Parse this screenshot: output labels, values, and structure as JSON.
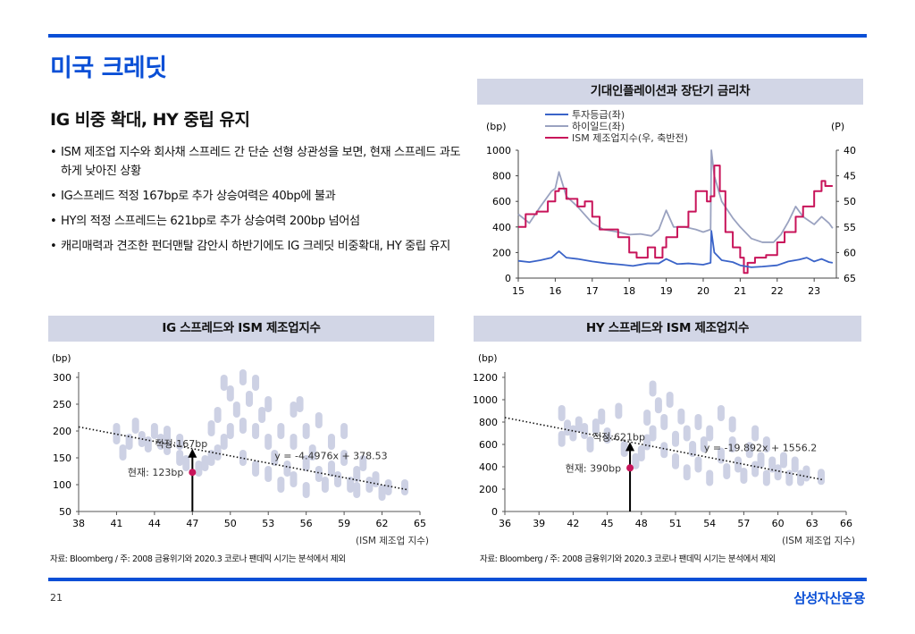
{
  "page": {
    "title": "미국 크레딧",
    "subtitle": "IG 비중 확대, HY 중립 유지",
    "bullets": [
      "ISM 제조업 지수와 회사채 스프레드 간 단순 선형 상관성을 보면, 현재 스프레드 과도하게 낮아진 상황",
      "IG스프레드 적정 167bp로 추가 상승여력은 40bp에 불과",
      "HY의 적정 스프레드는 621bp로 추가 상승여력 200bp 넘어섬",
      "캐리매력과 견조한 펀더맨탈 감안시 하반기에도 IG 크레딧 비중확대, HY 중립 유지"
    ],
    "page_number": "21",
    "brand": "삼성자산운용",
    "accent_color": "#0a4fd6"
  },
  "chart_data": [
    {
      "id": "spread-vs-ism-timeseries",
      "type": "line",
      "title": "기대인플레이션과 장단기 금리차",
      "ylabel_left": "(bp)",
      "ylabel_right": "(P)",
      "ylim_left": [
        0,
        1000
      ],
      "yticks_left": [
        "1000",
        "800",
        "600",
        "400",
        "200",
        "0"
      ],
      "ylim_right": [
        40,
        65
      ],
      "right_axis_inverted": true,
      "yticks_right": [
        "40",
        "45",
        "50",
        "55",
        "60",
        "65"
      ],
      "xlim": [
        15,
        23.6
      ],
      "xticks": [
        "15",
        "16",
        "17",
        "18",
        "19",
        "20",
        "21",
        "22",
        "23"
      ],
      "legend_position": "top-left",
      "series": [
        {
          "name": "투자등급(좌)",
          "axis": "left",
          "color": "#3a63c8",
          "x": [
            15,
            15.3,
            15.6,
            15.9,
            16.1,
            16.3,
            16.6,
            17,
            17.4,
            17.8,
            18.1,
            18.5,
            18.8,
            19,
            19.3,
            19.6,
            20,
            20.2,
            20.22,
            20.3,
            20.5,
            20.8,
            21,
            21.3,
            21.6,
            22,
            22.3,
            22.6,
            22.8,
            23,
            23.2,
            23.4,
            23.5
          ],
          "y": [
            135,
            125,
            140,
            160,
            210,
            160,
            150,
            130,
            115,
            105,
            95,
            115,
            115,
            150,
            110,
            115,
            105,
            120,
            370,
            200,
            140,
            125,
            100,
            85,
            90,
            100,
            130,
            145,
            160,
            130,
            150,
            125,
            120
          ]
        },
        {
          "name": "하이일드(좌)",
          "axis": "left",
          "color": "#9aa2c0",
          "x": [
            15,
            15.3,
            15.6,
            15.9,
            16,
            16.1,
            16.3,
            16.6,
            17,
            17.3,
            17.7,
            18,
            18.3,
            18.6,
            18.8,
            19,
            19.2,
            19.5,
            19.8,
            20,
            20.2,
            20.22,
            20.3,
            20.5,
            20.8,
            21,
            21.3,
            21.6,
            21.9,
            22.1,
            22.3,
            22.5,
            22.7,
            23,
            23.2,
            23.4,
            23.5
          ],
          "y": [
            500,
            430,
            560,
            680,
            700,
            830,
            640,
            560,
            430,
            380,
            360,
            340,
            345,
            330,
            380,
            530,
            400,
            400,
            380,
            360,
            380,
            1000,
            800,
            600,
            470,
            400,
            310,
            280,
            280,
            340,
            440,
            560,
            480,
            420,
            480,
            430,
            390
          ]
        },
        {
          "name": "ISM 제조업지수(우, 축반전)",
          "axis": "right",
          "color": "#c8145a",
          "x": [
            15,
            15.2,
            15.5,
            15.8,
            16,
            16.1,
            16.3,
            16.6,
            16.8,
            17,
            17.2,
            17.4,
            17.7,
            18,
            18.2,
            18.5,
            18.7,
            18.9,
            19,
            19.3,
            19.6,
            19.8,
            20,
            20.1,
            20.2,
            20.3,
            20.45,
            20.6,
            20.8,
            21,
            21.1,
            21.2,
            21.4,
            21.7,
            22,
            22.2,
            22.5,
            22.7,
            23,
            23.2,
            23.3,
            23.5
          ],
          "y": [
            55,
            52.5,
            52,
            50,
            48,
            47.5,
            49.5,
            51,
            50,
            53,
            55.5,
            55.5,
            57,
            60,
            61,
            59,
            61,
            59,
            57,
            55,
            52,
            48,
            48,
            50,
            49,
            43,
            48,
            56,
            59,
            61,
            64,
            62,
            61,
            60.5,
            58,
            56,
            53,
            51,
            48,
            46,
            47,
            47
          ]
        }
      ]
    },
    {
      "id": "ig-scatter",
      "type": "scatter",
      "title": "IG 스프레드와 ISM 제조업지수",
      "ylabel": "(bp)",
      "xlabel": "(ISM 제조업 지수)",
      "xlim": [
        38,
        65
      ],
      "xticks": [
        "38",
        "41",
        "44",
        "47",
        "50",
        "53",
        "56",
        "59",
        "62",
        "65"
      ],
      "ylim": [
        50,
        300
      ],
      "yticks": [
        "300",
        "250",
        "200",
        "150",
        "100",
        "50"
      ],
      "trendline": {
        "slope": -4.4976,
        "intercept": 378.53,
        "x_range": [
          38,
          64
        ],
        "label": "y = -4.4976x + 378.53"
      },
      "fair_value": {
        "x": 47,
        "y": 167,
        "label": "적정:167bp"
      },
      "current": {
        "x": 47,
        "y": 123,
        "label": "현재: 123bp",
        "color": "#c8145a"
      },
      "point_color": "#cdd1e4",
      "points": [
        [
          41,
          200
        ],
        [
          41,
          190
        ],
        [
          41.5,
          160
        ],
        [
          42,
          180
        ],
        [
          42.5,
          210
        ],
        [
          43,
          185
        ],
        [
          43.5,
          175
        ],
        [
          44,
          200
        ],
        [
          44.5,
          180
        ],
        [
          45,
          170
        ],
        [
          45,
          195
        ],
        [
          46,
          150
        ],
        [
          46,
          180
        ],
        [
          46.5,
          140
        ],
        [
          47.5,
          130
        ],
        [
          48,
          140
        ],
        [
          48.5,
          150
        ],
        [
          48.5,
          205
        ],
        [
          49,
          160
        ],
        [
          49,
          230
        ],
        [
          49.5,
          180
        ],
        [
          49.5,
          290
        ],
        [
          50,
          270
        ],
        [
          50,
          200
        ],
        [
          50.5,
          240
        ],
        [
          51,
          300
        ],
        [
          51,
          210
        ],
        [
          51,
          150
        ],
        [
          51.5,
          260
        ],
        [
          52,
          290
        ],
        [
          52,
          200
        ],
        [
          52,
          130
        ],
        [
          52.5,
          230
        ],
        [
          53,
          180
        ],
        [
          53,
          120
        ],
        [
          53,
          250
        ],
        [
          53.5,
          150
        ],
        [
          54,
          100
        ],
        [
          54,
          200
        ],
        [
          54.5,
          130
        ],
        [
          55,
          240
        ],
        [
          55,
          180
        ],
        [
          55,
          110
        ],
        [
          55.5,
          250
        ],
        [
          56,
          200
        ],
        [
          56,
          140
        ],
        [
          56,
          90
        ],
        [
          56.5,
          160
        ],
        [
          57,
          120
        ],
        [
          57,
          220
        ],
        [
          57.5,
          100
        ],
        [
          58,
          180
        ],
        [
          58,
          130
        ],
        [
          58.5,
          110
        ],
        [
          59,
          200
        ],
        [
          59,
          150
        ],
        [
          59.5,
          100
        ],
        [
          60,
          120
        ],
        [
          60,
          90
        ],
        [
          60.5,
          140
        ],
        [
          61,
          100
        ],
        [
          61.5,
          110
        ],
        [
          62,
          85
        ],
        [
          62.5,
          95
        ],
        [
          63.8,
          95
        ]
      ]
    },
    {
      "id": "hy-scatter",
      "type": "scatter",
      "title": "HY 스프레드와 ISM 제조업지수",
      "ylabel": "(bp)",
      "xlabel": "(ISM 제조업 지수)",
      "xlim": [
        36,
        66
      ],
      "xticks": [
        "36",
        "39",
        "42",
        "45",
        "48",
        "51",
        "54",
        "57",
        "60",
        "63",
        "66"
      ],
      "ylim": [
        0,
        1200
      ],
      "yticks": [
        "1200",
        "1000",
        "800",
        "600",
        "400",
        "200",
        "0"
      ],
      "trendline": {
        "slope": -19.892,
        "intercept": 1556.2,
        "x_range": [
          36,
          64
        ],
        "label": "y = -19.892x + 1556.2"
      },
      "fair_value": {
        "x": 47,
        "y": 621,
        "label": "적정:621bp"
      },
      "current": {
        "x": 47,
        "y": 390,
        "label": "현재: 390bp",
        "color": "#c8145a"
      },
      "point_color": "#cdd1e4",
      "points": [
        [
          41,
          880
        ],
        [
          41,
          650
        ],
        [
          41.5,
          750
        ],
        [
          42,
          700
        ],
        [
          42.5,
          780
        ],
        [
          43,
          720
        ],
        [
          43.5,
          600
        ],
        [
          44,
          760
        ],
        [
          44.5,
          850
        ],
        [
          45,
          680
        ],
        [
          46,
          900
        ],
        [
          46.5,
          560
        ],
        [
          47.5,
          450
        ],
        [
          48,
          520
        ],
        [
          48.5,
          620
        ],
        [
          48.5,
          840
        ],
        [
          49,
          700
        ],
        [
          49,
          1100
        ],
        [
          49.5,
          950
        ],
        [
          50,
          800
        ],
        [
          50,
          550
        ],
        [
          50.5,
          1000
        ],
        [
          51,
          650
        ],
        [
          51,
          450
        ],
        [
          51.5,
          850
        ],
        [
          52,
          700
        ],
        [
          52,
          350
        ],
        [
          52.5,
          560
        ],
        [
          53,
          800
        ],
        [
          53,
          420
        ],
        [
          53.5,
          600
        ],
        [
          54,
          300
        ],
        [
          54,
          700
        ],
        [
          55,
          880
        ],
        [
          55,
          500
        ],
        [
          55.5,
          360
        ],
        [
          56,
          600
        ],
        [
          56,
          780
        ],
        [
          56.5,
          420
        ],
        [
          57,
          320
        ],
        [
          57.5,
          550
        ],
        [
          58,
          700
        ],
        [
          58,
          380
        ],
        [
          58.5,
          460
        ],
        [
          59,
          600
        ],
        [
          59,
          300
        ],
        [
          59.5,
          420
        ],
        [
          60,
          350
        ],
        [
          60.5,
          460
        ],
        [
          61,
          300
        ],
        [
          61.5,
          420
        ],
        [
          62,
          300
        ],
        [
          62.5,
          340
        ],
        [
          63.8,
          310
        ]
      ]
    }
  ],
  "sources": {
    "left": "자료: Bloomberg / 주: 2008 금융위기와 2020.3 코로나 팬데믹 시기는 분석에서 제외",
    "right": "자료: Bloomberg / 주: 2008 금융위기와 2020.3 코로나 팬데믹 시기는 분석에서 제외"
  }
}
